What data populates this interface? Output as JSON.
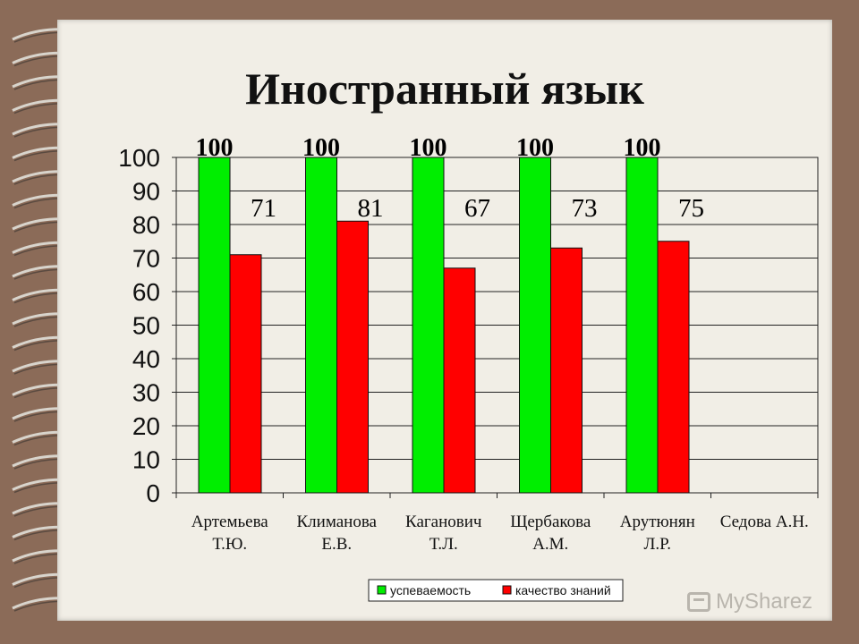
{
  "slide": {
    "title": "Иностранный язык",
    "watermark": "MySharez"
  },
  "colors": {
    "frame": "#8b6b58",
    "paper": "#f1eee6",
    "series_1": "#00ee00",
    "series_2": "#ff0000"
  },
  "chart_data": {
    "type": "bar",
    "categories": [
      [
        "Артемьева",
        "Т.Ю."
      ],
      [
        "Климанова",
        "Е.В."
      ],
      [
        "Каганович",
        "Т.Л."
      ],
      [
        "Щербакова",
        "А.М."
      ],
      [
        "Арутюнян",
        "Л.Р."
      ],
      [
        "Седова А.Н."
      ]
    ],
    "series": [
      {
        "name": "успеваемость",
        "color": "#00ee00",
        "values": [
          100,
          100,
          100,
          100,
          100,
          null
        ]
      },
      {
        "name": "качество знаний",
        "color": "#ff0000",
        "values": [
          71,
          81,
          67,
          73,
          75,
          null
        ]
      }
    ],
    "ylim": [
      0,
      100
    ],
    "yticks": [
      0,
      10,
      20,
      30,
      40,
      50,
      60,
      70,
      80,
      90,
      100
    ],
    "grid": true,
    "legend": "bottom-right",
    "data_labels": true
  }
}
